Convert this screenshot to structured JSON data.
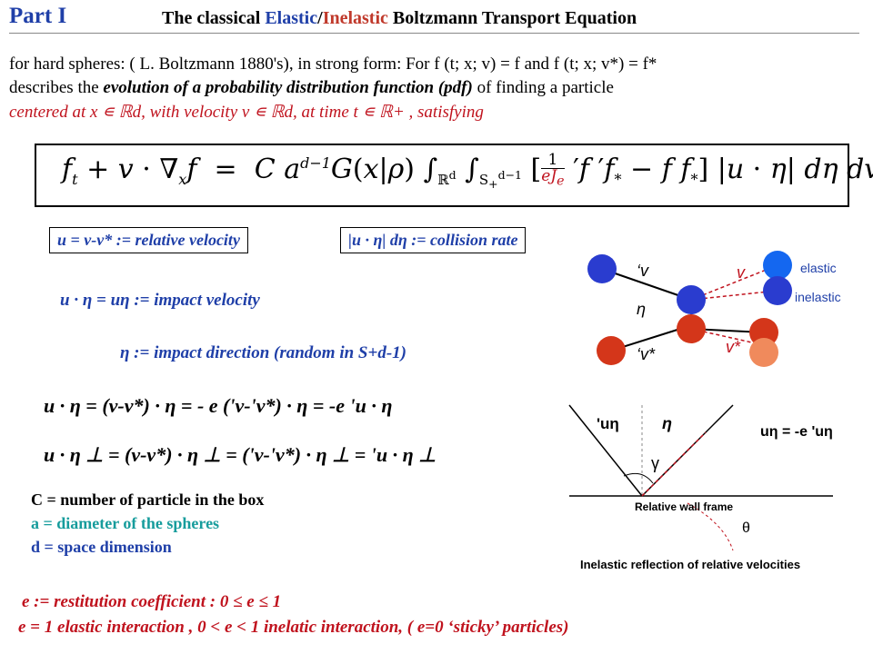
{
  "title": {
    "part": "Part I",
    "prefix": "The classical ",
    "elastic": "Elastic",
    "slash": "/",
    "inelastic": "Inelastic",
    "suffix": " Boltzmann Transport Equation"
  },
  "intro": {
    "line1": "for hard spheres: ( L. Boltzmann 1880's), in strong form: For f (t; x; v) = f and f (t; x; v*) = f*",
    "line2_a": "describes the ",
    "line2_b": "evolution of a probability distribution function (pdf)",
    "line2_c": " of finding a particle",
    "line3": "centered at x ∊ ℝd, with velocity v ∊ ℝd, at time t ∊ ℝ+ , satisfying"
  },
  "equation": "f_t + v · ∇_x f  =  C a^(d−1) G(x|ρ) ∫_ℝd ∫_S+d−1 [ (1/(e J_e)) 'f 'f* − f f* ] |u · η| dη dv*",
  "boxes": {
    "relative_velocity": "u = v-v* := relative velocity",
    "collision_rate": "|u · η| dη := collision rate"
  },
  "labels": {
    "impact_velocity": "u · η = uη :=  impact velocity",
    "impact_direction": "η  :=  impact direction (random in S+d-1)"
  },
  "relations": {
    "line1": "u · η  =   (v-v*) · η    = - e ('v-'v*) · η   =   -e 'u · η",
    "line2": "u · η ⊥ =  (v-v*) · η ⊥ =   ('v-'v*) · η ⊥   =   'u · η ⊥"
  },
  "definitions": {
    "C": "C = number of particle in the box",
    "a": "a = diameter of the spheres",
    "d": "d = space dimension"
  },
  "bottom": {
    "line1": "e := restitution coefficient  :  0 ≤  e ≤ 1",
    "line2": "e = 1 elastic interaction ,       0 < e < 1   inelatic interaction,     ( e=0      ‘sticky’ particles)"
  },
  "diagram_top": {
    "v_prime": "‘v",
    "eta": "η",
    "v_star_prime": "‘v*",
    "v": "v",
    "v_star": "v*",
    "elastic": "elastic",
    "inelastic": "inelastic"
  },
  "diagram_bottom": {
    "u_eta_prime": "'uη",
    "eta": "η",
    "u_eta_relation": "uη = -e 'uη",
    "gamma": "γ",
    "frame_label": "Relative wall frame",
    "theta": "θ",
    "caption": "Inelastic reflection of relative velocities"
  },
  "colors": {
    "blue_text": "#1f3fa8",
    "red_text": "#c0131e",
    "teal_text": "#169c9c",
    "sphere_blue": "#2a3ccf",
    "sphere_red": "#d4361a",
    "sphere_bright_blue": "#1467f0",
    "sphere_light_red": "#f08a5c"
  }
}
